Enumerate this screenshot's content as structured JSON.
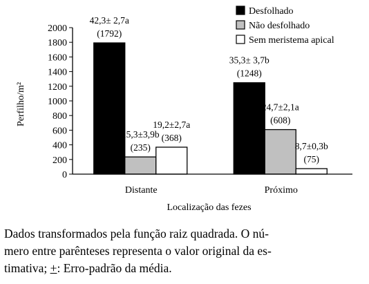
{
  "chart_data": {
    "type": "bar",
    "title": "",
    "xlabel": "Localização das fezes",
    "ylabel": "Perfilho/m²",
    "ylim": [
      0,
      2000
    ],
    "yticks": [
      0,
      200,
      400,
      600,
      800,
      1000,
      1200,
      1400,
      1600,
      1800,
      2000
    ],
    "grid": false,
    "legend_position": "top-right",
    "categories": [
      "Distante",
      "Próximo"
    ],
    "series": [
      {
        "name": "Desfolhado",
        "color": "#000000",
        "values": [
          1792,
          1248
        ],
        "labels": [
          [
            "42,3± 2,7a",
            "(1792)"
          ],
          [
            "35,3± 3,7b",
            "(1248)"
          ]
        ]
      },
      {
        "name": "Não desfolhado",
        "color": "#c0c0c0",
        "values": [
          235,
          608
        ],
        "labels": [
          [
            "15,3±3,9b",
            "(235)"
          ],
          [
            "24,7±2,1a",
            "(608)"
          ]
        ]
      },
      {
        "name": "Sem meristema apical",
        "color": "#ffffff",
        "values": [
          368,
          75
        ],
        "labels": [
          [
            "19,2±2,7a",
            "(368)"
          ],
          [
            "8,7±0,3b",
            "(75)"
          ]
        ]
      }
    ]
  },
  "caption": {
    "line1": "Dados transformados pela função raiz quadrada. O nú-",
    "line2": "mero entre parênteses representa o valor original da es-",
    "line3_before": "timativa; ",
    "line3_pm": "+",
    "line3_after": ": Erro-padrão da média."
  }
}
